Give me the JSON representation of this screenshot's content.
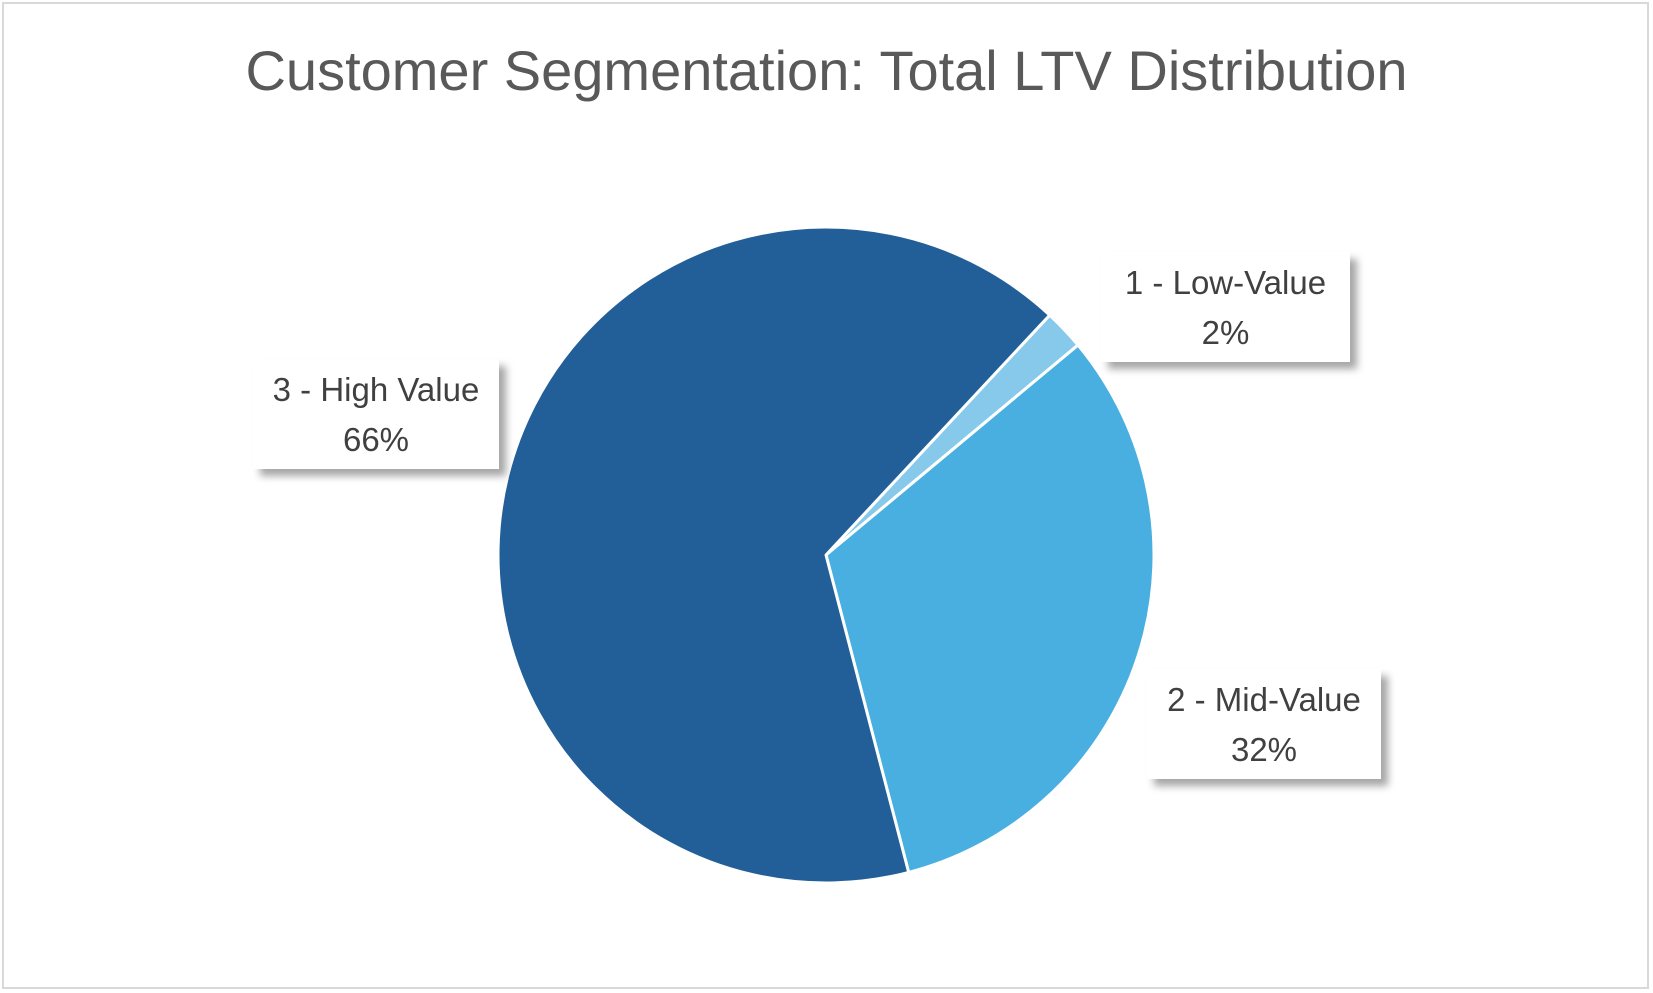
{
  "chart_data": {
    "type": "pie",
    "title": "Customer Segmentation: Total LTV Distribution",
    "categories": [
      "1 - Low-Value",
      "2 - Mid-Value",
      "3 - High Value"
    ],
    "values": [
      2,
      32,
      66
    ],
    "value_format": "percent",
    "labels": [
      {
        "category": "1 - Low-Value",
        "percent": "2%"
      },
      {
        "category": "2 - Mid-Value",
        "percent": "32%"
      },
      {
        "category": "3 - High Value",
        "percent": "66%"
      }
    ],
    "colors": [
      "#86c9eb",
      "#48afe0",
      "#225f99"
    ],
    "legend": "none",
    "data_labels": "outside callouts"
  },
  "colors": {
    "slice_border": "#ffffff",
    "title_color": "#595959",
    "label_color": "#404040",
    "frame_border": "#d9d9d9"
  }
}
